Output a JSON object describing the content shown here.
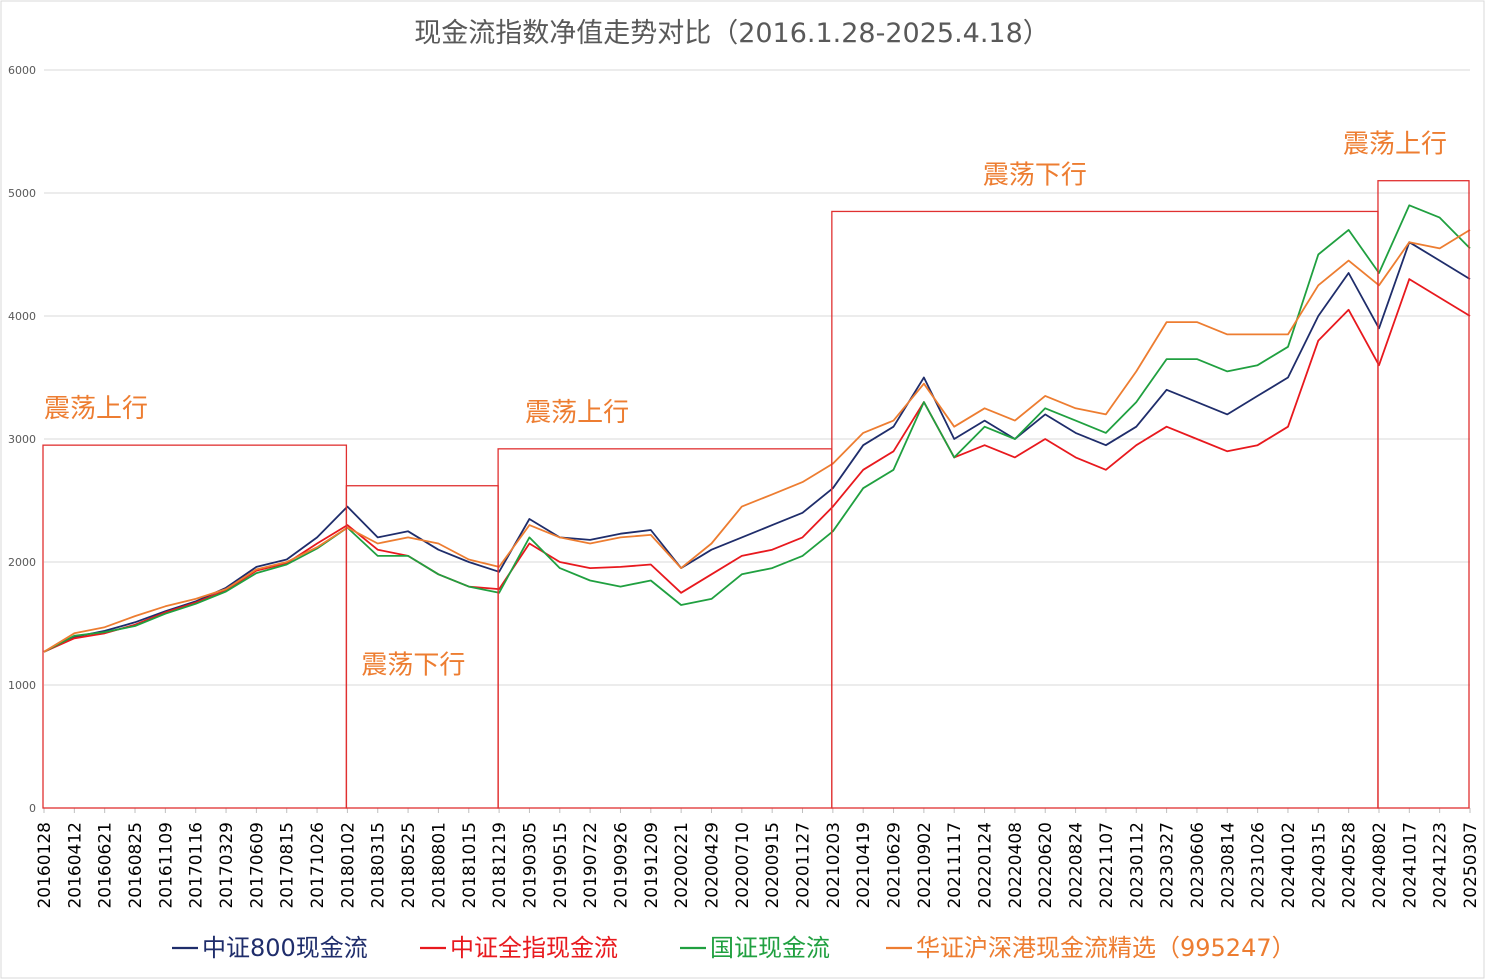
{
  "chart_data": {
    "type": "line",
    "title": "现金流指数净值走势对比（2016.1.28-2025.4.18）",
    "xlabel": "",
    "ylabel": "",
    "ylim": [
      0,
      6000
    ],
    "yticks": [
      "0",
      "1000",
      "2000",
      "3000",
      "4000",
      "5000",
      "6000"
    ],
    "grid": true,
    "legend_position": "bottom",
    "categories": [
      "20160128",
      "20160412",
      "20160621",
      "20160825",
      "20161109",
      "20170116",
      "20170329",
      "20170609",
      "20170815",
      "20171026",
      "20180102",
      "20180315",
      "20180525",
      "20180801",
      "20181015",
      "20181219",
      "20190305",
      "20190515",
      "20190722",
      "20190926",
      "20191209",
      "20200221",
      "20200429",
      "20200710",
      "20200915",
      "20201127",
      "20210203",
      "20210419",
      "20210629",
      "20210902",
      "20211117",
      "20220124",
      "20220408",
      "20220620",
      "20220824",
      "20221107",
      "20230112",
      "20230327",
      "20230606",
      "20230814",
      "20231026",
      "20240102",
      "20240315",
      "20240528",
      "20240802",
      "20241017",
      "20241223",
      "20250307"
    ],
    "series": [
      {
        "name": "中证800现金流",
        "color": "#1f2d6b",
        "values": [
          1270,
          1390,
          1440,
          1510,
          1600,
          1680,
          1790,
          1960,
          2020,
          2200,
          2450,
          2200,
          2250,
          2100,
          2000,
          1920,
          2350,
          2200,
          2180,
          2230,
          2260,
          1950,
          2100,
          2200,
          2300,
          2400,
          2600,
          2950,
          3100,
          3500,
          3000,
          3150,
          3000,
          3200,
          3050,
          2950,
          3100,
          3400,
          3300,
          3200,
          3350,
          3500,
          4000,
          4350,
          3900,
          4600,
          4450,
          4300
        ]
      },
      {
        "name": "中证全指现金流",
        "color": "#e8191e",
        "values": [
          1270,
          1380,
          1420,
          1490,
          1590,
          1670,
          1770,
          1930,
          1990,
          2150,
          2300,
          2100,
          2050,
          1900,
          1800,
          1780,
          2150,
          2000,
          1950,
          1960,
          1980,
          1750,
          1900,
          2050,
          2100,
          2200,
          2450,
          2750,
          2900,
          3300,
          2850,
          2950,
          2850,
          3000,
          2850,
          2750,
          2950,
          3100,
          3000,
          2900,
          2950,
          3100,
          3800,
          4050,
          3600,
          4300,
          4150,
          4000
        ]
      },
      {
        "name": "国证现金流",
        "color": "#20a040",
        "values": [
          1270,
          1400,
          1430,
          1480,
          1580,
          1660,
          1760,
          1910,
          1980,
          2110,
          2280,
          2050,
          2050,
          1900,
          1800,
          1750,
          2200,
          1950,
          1850,
          1800,
          1850,
          1650,
          1700,
          1900,
          1950,
          2050,
          2250,
          2600,
          2750,
          3300,
          2850,
          3100,
          3000,
          3250,
          3150,
          3050,
          3300,
          3650,
          3650,
          3550,
          3600,
          3750,
          4500,
          4700,
          4350,
          4900,
          4800,
          4550
        ]
      },
      {
        "name": "华证沪深港现金流精选（995247）",
        "color": "#ed7d31",
        "values": [
          1270,
          1420,
          1470,
          1560,
          1640,
          1700,
          1780,
          1940,
          2000,
          2120,
          2280,
          2150,
          2200,
          2150,
          2020,
          1960,
          2300,
          2200,
          2150,
          2200,
          2220,
          1950,
          2150,
          2450,
          2550,
          2650,
          2800,
          3050,
          3150,
          3450,
          3100,
          3250,
          3150,
          3350,
          3250,
          3200,
          3550,
          3950,
          3950,
          3850,
          3850,
          3850,
          4250,
          4450,
          4250,
          4600,
          4550,
          4700
        ]
      }
    ],
    "annotations": [
      {
        "label": "震荡上行",
        "from": "20160128",
        "to": "20180102"
      },
      {
        "label": "震荡下行",
        "from": "20180102",
        "to": "20181219"
      },
      {
        "label": "震荡上行",
        "from": "20181219",
        "to": "20210203"
      },
      {
        "label": "震荡下行",
        "from": "20210203",
        "to": "20240802"
      },
      {
        "label": "震荡上行",
        "from": "20240802",
        "to": "20250418"
      }
    ]
  }
}
